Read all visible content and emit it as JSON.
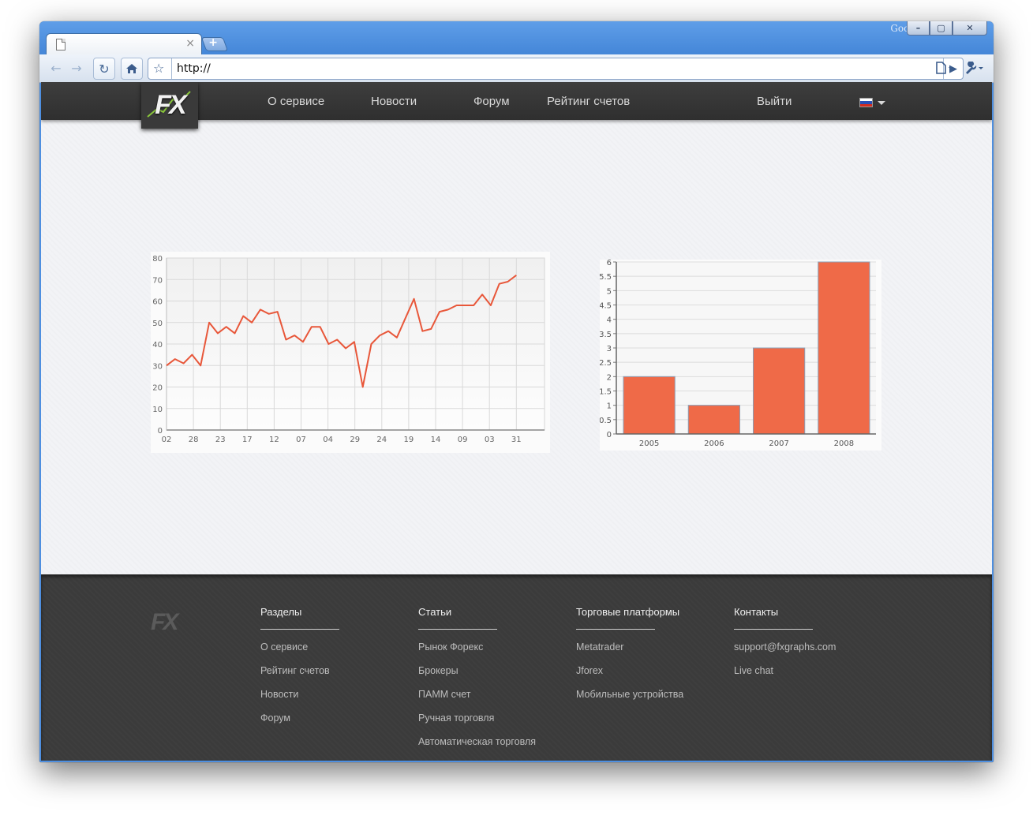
{
  "browser": {
    "brand_label": "Google",
    "url": "http://",
    "window_buttons": [
      "–",
      "▢",
      "✕"
    ]
  },
  "site": {
    "logo_text": "FX",
    "nav": {
      "about": "О сервисе",
      "news": "Новости",
      "forum": "Форум",
      "rating": "Рейтинг счетов",
      "logout": "Выйти"
    },
    "flag_colors": [
      "#ffffff",
      "#2a4fb8",
      "#d52b1e"
    ]
  },
  "chart_data": [
    {
      "type": "line",
      "title": "",
      "xlabel": "",
      "ylabel": "",
      "ylim": [
        0,
        80
      ],
      "yticks": [
        0,
        10,
        20,
        30,
        40,
        50,
        60,
        70,
        80
      ],
      "xtick_labels": [
        "02",
        "28",
        "23",
        "17",
        "12",
        "07",
        "04",
        "29",
        "24",
        "19",
        "14",
        "09",
        "03",
        "31"
      ],
      "values": [
        30,
        33,
        31,
        35,
        30,
        50,
        45,
        48,
        45,
        53,
        50,
        56,
        54,
        55,
        42,
        44,
        41,
        48,
        48,
        40,
        42,
        38,
        41,
        20,
        40,
        44,
        46,
        43,
        52,
        61,
        46,
        47,
        55,
        56,
        58,
        58,
        58,
        63,
        58,
        68,
        69,
        72
      ],
      "color": "#e8573a",
      "grid": true
    },
    {
      "type": "bar",
      "title": "",
      "xlabel": "",
      "ylabel": "",
      "categories": [
        "2005",
        "2006",
        "2007",
        "2008"
      ],
      "values": [
        2,
        1,
        3,
        6
      ],
      "ylim": [
        0,
        6
      ],
      "yticks": [
        0,
        0.5,
        1,
        1.5,
        2,
        2.5,
        3,
        3.5,
        4,
        4.5,
        5,
        5.5,
        6
      ],
      "color": "#ef6a48",
      "grid": true
    }
  ],
  "footer": {
    "logo_text": "FX",
    "columns": [
      {
        "title": "Разделы",
        "links": [
          "О сервисе",
          "Рейтинг счетов",
          "Новости",
          "Форум"
        ]
      },
      {
        "title": "Статьи",
        "links": [
          "Рынок Форекс",
          "Брокеры",
          "ПАММ счет",
          "Ручная торговля",
          "Автоматическая торговля"
        ]
      },
      {
        "title": "Торговые платформы",
        "links": [
          "Metatrader",
          "Jforex",
          "Мобильные устройства"
        ]
      },
      {
        "title": "Контакты",
        "links": [
          "support@fxgraphs.com",
          "Live chat"
        ]
      }
    ]
  }
}
